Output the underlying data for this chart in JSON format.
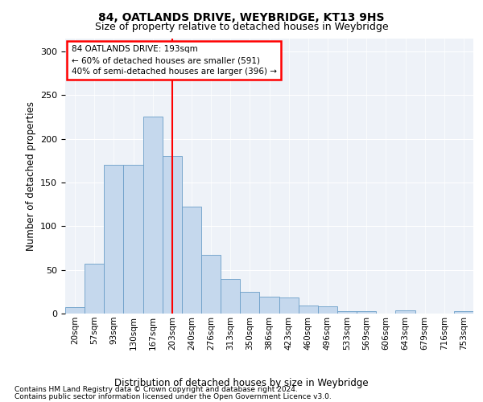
{
  "title1": "84, OATLANDS DRIVE, WEYBRIDGE, KT13 9HS",
  "title2": "Size of property relative to detached houses in Weybridge",
  "xlabel": "Distribution of detached houses by size in Weybridge",
  "ylabel": "Number of detached properties",
  "categories": [
    "20sqm",
    "57sqm",
    "93sqm",
    "130sqm",
    "167sqm",
    "203sqm",
    "240sqm",
    "276sqm",
    "313sqm",
    "350sqm",
    "386sqm",
    "423sqm",
    "460sqm",
    "496sqm",
    "533sqm",
    "569sqm",
    "606sqm",
    "643sqm",
    "679sqm",
    "716sqm",
    "753sqm"
  ],
  "bar_values": [
    7,
    57,
    170,
    170,
    225,
    180,
    122,
    67,
    40,
    25,
    19,
    18,
    9,
    8,
    3,
    3,
    0,
    4,
    0,
    0,
    3
  ],
  "bar_color": "#c5d8ed",
  "bar_edge_color": "#6b9ec8",
  "vline_color": "red",
  "vline_pos": 5.5,
  "ylim": [
    0,
    315
  ],
  "yticks": [
    0,
    50,
    100,
    150,
    200,
    250,
    300
  ],
  "annotation_line1": "84 OATLANDS DRIVE: 193sqm",
  "annotation_line2": "← 60% of detached houses are smaller (591)",
  "annotation_line3": "40% of semi-detached houses are larger (396) →",
  "footer1": "Contains HM Land Registry data © Crown copyright and database right 2024.",
  "footer2": "Contains public sector information licensed under the Open Government Licence v3.0.",
  "background_color": "#eef2f8"
}
